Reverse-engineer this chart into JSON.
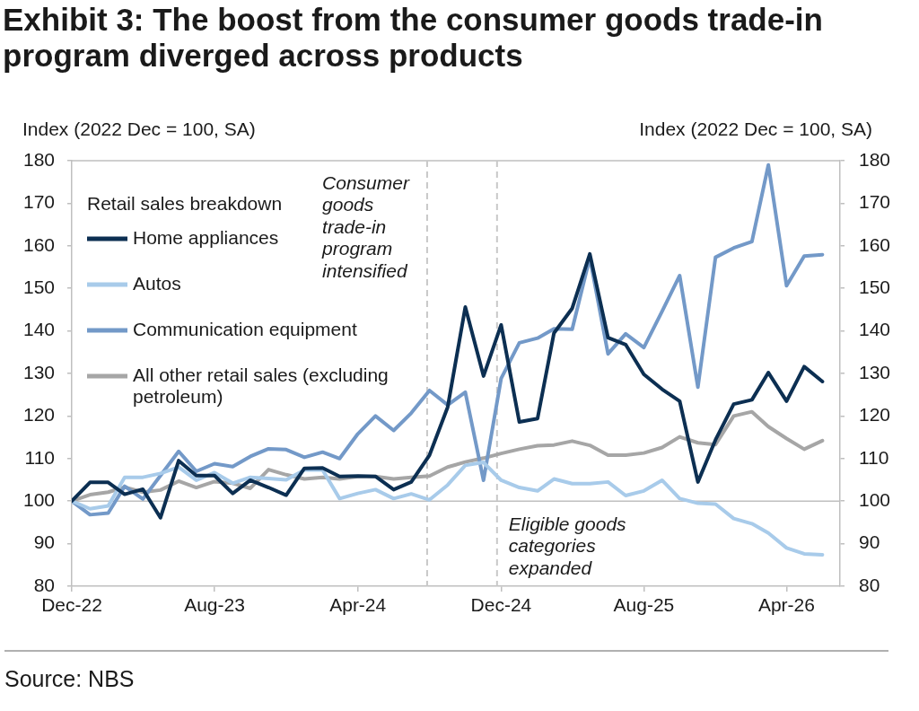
{
  "chart_data": {
    "type": "line",
    "title": "Exhibit 3: The boost from the consumer goods trade-in program diverged across products",
    "ylabel": "Index (2022 Dec = 100, SA)",
    "y2label": "Index (2022 Dec = 100, SA)",
    "legend_title": "Retail sales breakdown",
    "legend": "top left",
    "grid": false,
    "marker": "none",
    "line_style": "solid",
    "x": [
      "2022-12",
      "2023-01",
      "2023-02",
      "2023-03",
      "2023-04",
      "2023-05",
      "2023-06",
      "2023-07",
      "2023-08",
      "2023-09",
      "2023-10",
      "2023-11",
      "2023-12",
      "2024-01",
      "2024-02",
      "2024-03",
      "2024-04",
      "2024-05",
      "2024-06",
      "2024-07",
      "2024-08",
      "2024-09",
      "2024-10",
      "2024-11",
      "2024-12",
      "2025-01",
      "2025-02",
      "2025-03",
      "2025-04",
      "2025-05",
      "2025-06",
      "2025-07",
      "2025-08",
      "2025-09",
      "2025-10",
      "2025-11",
      "2025-12",
      "2026-01",
      "2026-02",
      "2026-03",
      "2026-04",
      "2026-05",
      "2026-06"
    ],
    "xlim": [
      "2022-12",
      "2026-07"
    ],
    "xticks": [
      {
        "value": "2022-12",
        "label": "Dec-22"
      },
      {
        "value": "2023-08",
        "label": "Aug-23"
      },
      {
        "value": "2024-04",
        "label": "Apr-24"
      },
      {
        "value": "2024-12",
        "label": "Dec-24"
      },
      {
        "value": "2025-08",
        "label": "Aug-25"
      },
      {
        "value": "2026-04",
        "label": "Apr-26"
      }
    ],
    "ylim": [
      80,
      180
    ],
    "yticks": [
      80,
      90,
      100,
      110,
      120,
      130,
      140,
      150,
      160,
      170,
      180
    ],
    "y2lim": [
      80,
      180
    ],
    "y2ticks": [
      80,
      90,
      100,
      110,
      120,
      130,
      140,
      150,
      160,
      170,
      180
    ],
    "series": [
      {
        "name": "Home appliances",
        "color": "#0c2f52",
        "values": [
          100,
          104.4,
          104.4,
          101.6,
          102.8,
          96.1,
          109.5,
          106,
          106,
          101.8,
          104.9,
          103.2,
          101.4,
          107.7,
          107.8,
          105.8,
          105.9,
          105.8,
          102.7,
          104.5,
          110.8,
          122.1,
          145.6,
          129.4,
          141.4,
          118.6,
          119.4,
          139.5,
          145.3,
          158.1,
          138.4,
          136.8,
          129.8,
          126.3,
          123.5,
          104.5,
          114.4,
          122.8,
          123.8,
          130.2,
          123.5,
          131.6,
          128.1
        ]
      },
      {
        "name": "Autos",
        "color": "#a8cbea",
        "values": [
          100,
          98.2,
          98.9,
          105.6,
          105.6,
          106.5,
          108,
          104.9,
          106.7,
          104.2,
          105.6,
          105.3,
          105,
          107.3,
          107.3,
          100.6,
          101.8,
          102.7,
          100.6,
          101.7,
          100.3,
          103.8,
          108.4,
          109.1,
          104.9,
          103.2,
          102.4,
          105.2,
          104.1,
          104.1,
          104.5,
          101.3,
          102.4,
          104.9,
          100.6,
          99.5,
          99.3,
          95.9,
          94.7,
          92.5,
          89,
          87.6,
          87.4
        ]
      },
      {
        "name": "Communication equipment",
        "color": "#7399c8",
        "values": [
          100,
          96.8,
          97.2,
          103.5,
          100.5,
          106,
          111.7,
          107,
          108.8,
          108.1,
          110.5,
          112.3,
          112.1,
          110.3,
          111.5,
          110,
          115.8,
          120,
          116.6,
          120.7,
          126,
          122.6,
          125.6,
          104.9,
          128.8,
          137.2,
          138.3,
          140.5,
          140.4,
          157.2,
          134.6,
          139.3,
          136.1,
          144.6,
          153,
          126.8,
          157.3,
          159.5,
          161,
          179,
          150.6,
          157.6,
          157.9
        ]
      },
      {
        "name": "All other retail sales (excluding petroleum)",
        "color": "#a6a6a6",
        "values": [
          100,
          101.5,
          102.1,
          103.3,
          102.1,
          102.6,
          104.7,
          103.2,
          104.6,
          104.2,
          103,
          107.4,
          106.2,
          105.2,
          105.6,
          105.2,
          105.8,
          105.8,
          105.2,
          105.6,
          105.9,
          108,
          109.2,
          110.1,
          111.2,
          112.2,
          113,
          113.2,
          114.1,
          113.1,
          110.8,
          110.8,
          111.3,
          112.6,
          115.1,
          113.7,
          113.3,
          120,
          121,
          117.5,
          114.7,
          112.2,
          114.2
        ]
      }
    ],
    "ref_lines": [
      {
        "axis": "y",
        "value": 100,
        "color": "#bfbfbf"
      },
      {
        "axis": "x",
        "value": "2024-07-28",
        "label": "Consumer goods trade-in program intensified",
        "color": "#c8c8c8",
        "line_style": "dashed"
      },
      {
        "axis": "x",
        "value": "2024-11-24",
        "label": "Eligible goods categories expanded",
        "color": "#c8c8c8",
        "line_style": "dashed"
      }
    ],
    "annotations": [
      "Source: NBS"
    ]
  }
}
